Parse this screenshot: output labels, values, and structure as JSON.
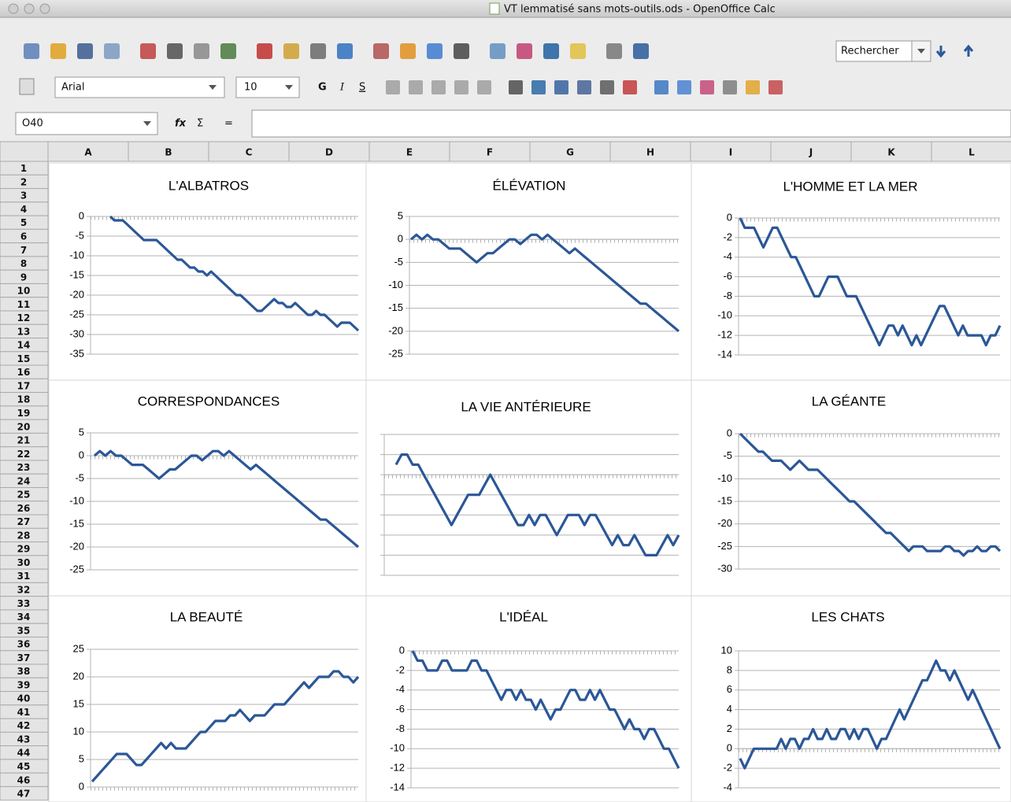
{
  "window": {
    "title": "VT lemmatisé sans mots-outils.ods - OpenOffice Calc"
  },
  "toolbar": {
    "search": "Rechercher",
    "font_name": "Arial",
    "font_size": "10",
    "bold": "G",
    "italic": "I",
    "underline": "S"
  },
  "formula_bar": {
    "cell_reference": "O40",
    "function_wizard": "fx",
    "sum": "Σ",
    "equals": "="
  },
  "sheet": {
    "columns": [
      "A",
      "B",
      "C",
      "D",
      "E",
      "F",
      "G",
      "H",
      "I",
      "J",
      "K",
      "L"
    ],
    "rows": [
      1,
      2,
      3,
      4,
      5,
      6,
      7,
      8,
      9,
      10,
      11,
      12,
      13,
      14,
      15,
      16,
      17,
      18,
      19,
      20,
      21,
      22,
      23,
      24,
      25,
      26,
      27,
      28,
      29,
      30,
      31,
      32,
      33,
      34,
      35,
      36,
      37,
      38,
      39,
      40,
      41,
      42,
      43,
      44,
      45,
      46,
      47
    ]
  },
  "chart_data": [
    {
      "type": "line",
      "title": "L'ALBATROS",
      "color": "#2b5797",
      "grid": true,
      "ylim": [
        -35,
        0
      ],
      "yticks": [
        0,
        -5,
        -10,
        -15,
        -20,
        -25,
        -30,
        -35
      ],
      "values": [
        0,
        -1,
        -1,
        -1,
        -2,
        -3,
        -4,
        -5,
        -6,
        -6,
        -6,
        -6,
        -7,
        -8,
        -9,
        -10,
        -11,
        -11,
        -12,
        -13,
        -13,
        -14,
        -14,
        -15,
        -14,
        -15,
        -16,
        -17,
        -18,
        -19,
        -20,
        -20,
        -21,
        -22,
        -23,
        -24,
        -24,
        -23,
        -22,
        -21,
        -22,
        -22,
        -23,
        -23,
        -22,
        -23,
        -24,
        -25,
        -25,
        -24,
        -25,
        -25,
        -26,
        -27,
        -28,
        -27,
        -27,
        -27,
        -28,
        -29
      ]
    },
    {
      "type": "line",
      "title": "ÉLÉVATION",
      "color": "#2b5797",
      "grid": true,
      "ylim": [
        -25,
        5
      ],
      "yticks": [
        5,
        0,
        -5,
        -10,
        -15,
        -20,
        -25
      ],
      "values": [
        0,
        1,
        0,
        1,
        0,
        0,
        -1,
        -2,
        -2,
        -2,
        -3,
        -4,
        -5,
        -4,
        -3,
        -3,
        -2,
        -1,
        0,
        0,
        -1,
        0,
        1,
        1,
        0,
        1,
        0,
        -1,
        -2,
        -3,
        -2,
        -3,
        -4,
        -5,
        -6,
        -7,
        -8,
        -9,
        -10,
        -11,
        -12,
        -13,
        -14,
        -14,
        -15,
        -16,
        -17,
        -18,
        -19,
        -20
      ]
    },
    {
      "type": "line",
      "title": "L'HOMME ET LA MER",
      "color": "#2b5797",
      "grid": true,
      "ylim": [
        -14,
        0
      ],
      "yticks": [
        0,
        -2,
        -4,
        -6,
        -8,
        -10,
        -12,
        -14
      ],
      "values": [
        0,
        -1,
        -1,
        -1,
        -2,
        -3,
        -2,
        -1,
        -1,
        -2,
        -3,
        -4,
        -4,
        -5,
        -6,
        -7,
        -8,
        -8,
        -7,
        -6,
        -6,
        -6,
        -7,
        -8,
        -8,
        -8,
        -9,
        -10,
        -11,
        -12,
        -13,
        -12,
        -11,
        -11,
        -12,
        -11,
        -12,
        -13,
        -12,
        -13,
        -12,
        -11,
        -10,
        -9,
        -9,
        -10,
        -11,
        -12,
        -11,
        -12,
        -12,
        -12,
        -12,
        -13,
        -12,
        -12,
        -11
      ]
    },
    {
      "type": "line",
      "title": "CORRESPONDANCES",
      "color": "#2b5797",
      "grid": true,
      "ylim": [
        -25,
        5
      ],
      "yticks": [
        5,
        0,
        -5,
        -10,
        -15,
        -20,
        -25
      ],
      "values": [
        0,
        1,
        0,
        1,
        0,
        0,
        -1,
        -2,
        -2,
        -2,
        -3,
        -4,
        -5,
        -4,
        -3,
        -3,
        -2,
        -1,
        0,
        0,
        -1,
        0,
        1,
        1,
        0,
        1,
        0,
        -1,
        -2,
        -3,
        -2,
        -3,
        -4,
        -5,
        -6,
        -7,
        -8,
        -9,
        -10,
        -11,
        -12,
        -13,
        -14,
        -14,
        -15,
        -16,
        -17,
        -18,
        -19,
        -20
      ]
    },
    {
      "type": "line",
      "title": "LA VIE ANTÉRIEURE",
      "color": "#2b5797",
      "grid": true,
      "y_tick_labels": false,
      "ylim": [
        -10,
        4
      ],
      "yticks": [
        4,
        2,
        0,
        -2,
        -4,
        -6,
        -8,
        -10
      ],
      "values": [
        1,
        2,
        2,
        1,
        1,
        0,
        -1,
        -2,
        -3,
        -4,
        -5,
        -4,
        -3,
        -2,
        -2,
        -2,
        -1,
        0,
        -1,
        -2,
        -3,
        -4,
        -5,
        -5,
        -4,
        -5,
        -4,
        -4,
        -5,
        -6,
        -5,
        -4,
        -4,
        -4,
        -5,
        -4,
        -4,
        -5,
        -6,
        -7,
        -6,
        -7,
        -7,
        -6,
        -7,
        -8,
        -8,
        -8,
        -7,
        -6,
        -7,
        -6
      ]
    },
    {
      "type": "line",
      "title": "LA GÉANTE",
      "color": "#2b5797",
      "grid": true,
      "ylim": [
        -30,
        0
      ],
      "yticks": [
        0,
        -5,
        -10,
        -15,
        -20,
        -25,
        -30
      ],
      "values": [
        0,
        -1,
        -2,
        -3,
        -4,
        -4,
        -5,
        -6,
        -6,
        -6,
        -7,
        -8,
        -7,
        -6,
        -7,
        -8,
        -8,
        -8,
        -9,
        -10,
        -11,
        -12,
        -13,
        -14,
        -15,
        -15,
        -16,
        -17,
        -18,
        -19,
        -20,
        -21,
        -22,
        -22,
        -23,
        -24,
        -25,
        -26,
        -25,
        -25,
        -25,
        -26,
        -26,
        -26,
        -26,
        -25,
        -25,
        -26,
        -26,
        -27,
        -26,
        -26,
        -25,
        -26,
        -26,
        -25,
        -25,
        -26
      ]
    },
    {
      "type": "line",
      "title": "LA BEAUTÉ",
      "color": "#2b5797",
      "grid": true,
      "ylim": [
        0,
        25
      ],
      "yticks": [
        25,
        20,
        15,
        10,
        5,
        0
      ],
      "values": [
        1,
        2,
        3,
        4,
        5,
        6,
        6,
        6,
        5,
        4,
        4,
        5,
        6,
        7,
        8,
        7,
        8,
        7,
        7,
        7,
        8,
        9,
        10,
        10,
        11,
        12,
        12,
        12,
        13,
        13,
        14,
        13,
        12,
        13,
        13,
        13,
        14,
        15,
        15,
        15,
        16,
        17,
        18,
        19,
        18,
        19,
        20,
        20,
        20,
        21,
        21,
        20,
        20,
        19,
        20
      ]
    },
    {
      "type": "line",
      "title": "L'IDÉAL",
      "color": "#2b5797",
      "grid": true,
      "ylim": [
        -14,
        0
      ],
      "yticks": [
        0,
        -2,
        -4,
        -6,
        -8,
        -10,
        -12,
        -14
      ],
      "values": [
        0,
        -1,
        -1,
        -2,
        -2,
        -2,
        -1,
        -1,
        -2,
        -2,
        -2,
        -2,
        -1,
        -1,
        -2,
        -2,
        -3,
        -4,
        -5,
        -4,
        -4,
        -5,
        -4,
        -5,
        -5,
        -6,
        -5,
        -6,
        -7,
        -6,
        -6,
        -5,
        -4,
        -4,
        -5,
        -5,
        -4,
        -5,
        -4,
        -5,
        -6,
        -6,
        -7,
        -8,
        -7,
        -8,
        -8,
        -9,
        -8,
        -8,
        -9,
        -10,
        -10,
        -11,
        -12
      ]
    },
    {
      "type": "line",
      "title": "LES CHATS",
      "color": "#2b5797",
      "grid": true,
      "ylim": [
        -4,
        10
      ],
      "yticks": [
        10,
        8,
        6,
        4,
        2,
        0,
        -2,
        -4
      ],
      "values": [
        -1,
        -2,
        -1,
        0,
        0,
        0,
        0,
        0,
        0,
        1,
        0,
        1,
        1,
        0,
        1,
        1,
        2,
        1,
        1,
        2,
        1,
        1,
        2,
        2,
        1,
        2,
        1,
        2,
        2,
        1,
        0,
        1,
        1,
        2,
        3,
        4,
        3,
        4,
        5,
        6,
        7,
        7,
        8,
        9,
        8,
        8,
        7,
        8,
        7,
        6,
        5,
        6,
        5,
        4,
        3,
        2,
        1,
        0
      ]
    }
  ]
}
